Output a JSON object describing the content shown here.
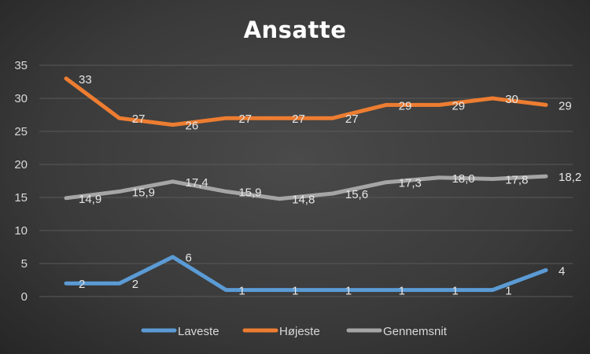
{
  "chart_data": {
    "type": "line",
    "title": "Ansatte",
    "xlabel": "",
    "ylabel": "",
    "ylim": [
      0,
      35
    ],
    "yticks": [
      0,
      5,
      10,
      15,
      20,
      25,
      30,
      35
    ],
    "grid": true,
    "legend_position": "bottom",
    "series": [
      {
        "name": "Laveste",
        "color": "#5b9bd5",
        "values": [
          2,
          2,
          6,
          1,
          1,
          1,
          1,
          1,
          1,
          4
        ],
        "labels": [
          "2",
          "2",
          "6",
          "1",
          "1",
          "1",
          "1",
          "1",
          "1",
          "4"
        ]
      },
      {
        "name": "Højeste",
        "color": "#ed7d31",
        "values": [
          33,
          27,
          26,
          27,
          27,
          27,
          29,
          29,
          30,
          29
        ],
        "labels": [
          "33",
          "27",
          "26",
          "27",
          "27",
          "27",
          "29",
          "29",
          "30",
          "29"
        ]
      },
      {
        "name": "Gennemsnit",
        "color": "#a5a5a5",
        "values": [
          14.9,
          15.9,
          17.4,
          15.9,
          14.8,
          15.6,
          17.3,
          18.0,
          17.8,
          18.2
        ],
        "labels": [
          "14,9",
          "15,9",
          "17,4",
          "15,9",
          "14,8",
          "15,6",
          "17,3",
          "18,0",
          "17,8",
          "18,2"
        ]
      }
    ]
  }
}
